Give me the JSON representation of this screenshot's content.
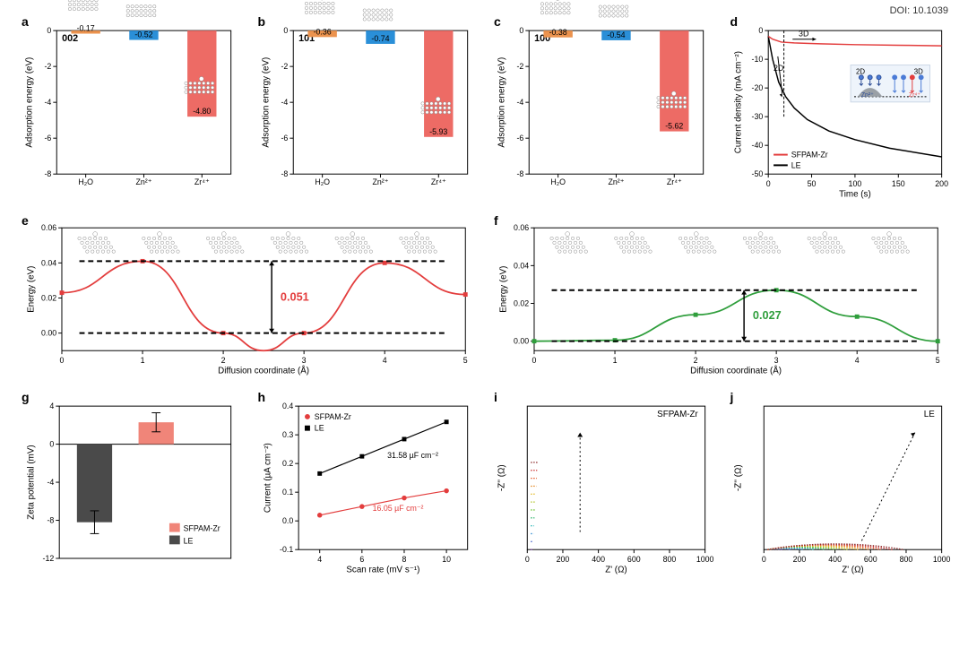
{
  "doi": "DOI: 10.1039",
  "colors": {
    "orange": "#ec934e",
    "blue": "#2a8fd8",
    "red": "#ed6b65",
    "line_red": "#e33d3d",
    "line_green": "#2f9e3c",
    "line_black": "#000000",
    "series_black": "#000000",
    "grid": "#d9d9d9",
    "gray_bar": "#4a4a4a",
    "salmon": "#f08579"
  },
  "panel_a": {
    "label": "a",
    "title": "002",
    "y_title": "Adsorption energy (eV)",
    "ylim": [
      0,
      -8
    ],
    "yticks": [
      0,
      -2,
      -4,
      -6,
      -8
    ],
    "categories": [
      "H₂O",
      "Zn²⁺",
      "Zr⁴⁺"
    ],
    "values": [
      -0.17,
      -0.52,
      -4.8
    ],
    "value_labels": [
      "-0.17",
      "-0.52",
      "-4.80"
    ],
    "bar_colors": [
      "orange",
      "blue",
      "red"
    ]
  },
  "panel_b": {
    "label": "b",
    "title": "101",
    "y_title": "Adsorption energy (eV)",
    "ylim": [
      0,
      -8
    ],
    "yticks": [
      0,
      -2,
      -4,
      -6,
      -8
    ],
    "categories": [
      "H₂O",
      "Zn²⁺",
      "Zr⁴⁺"
    ],
    "values": [
      -0.36,
      -0.74,
      -5.93
    ],
    "value_labels": [
      "-0.36",
      "-0.74",
      "-5.93"
    ],
    "bar_colors": [
      "orange",
      "blue",
      "red"
    ]
  },
  "panel_c": {
    "label": "c",
    "title": "100",
    "y_title": "Adsorption energy (eV)",
    "ylim": [
      0,
      -8
    ],
    "yticks": [
      0,
      -2,
      -4,
      -6,
      -8
    ],
    "categories": [
      "H₂O",
      "Zn²⁺",
      "Zr⁴⁺"
    ],
    "values": [
      -0.38,
      -0.54,
      -5.62
    ],
    "value_labels": [
      "-0.38",
      "-0.54",
      "-5.62"
    ],
    "bar_colors": [
      "orange",
      "blue",
      "red"
    ]
  },
  "panel_d": {
    "label": "d",
    "x_title": "Time (s)",
    "y_title": "Current density (mA cm⁻²)",
    "xlim": [
      0,
      200
    ],
    "xticks": [
      0,
      50,
      100,
      150,
      200
    ],
    "ylim": [
      -50,
      0
    ],
    "yticks": [
      -50,
      -40,
      -30,
      -20,
      -10,
      0
    ],
    "legend": [
      {
        "label": "SFPAM-Zr",
        "color": "line_red"
      },
      {
        "label": "LE",
        "color": "line_black"
      }
    ],
    "ann_3d": "3D",
    "ann_2d": "2D",
    "inset_labels": {
      "zn": "Zn²⁺",
      "zr": "Zr⁴⁺",
      "l2d": "2D",
      "l3d": "3D"
    },
    "series": {
      "sfpam": [
        [
          0,
          -2
        ],
        [
          5,
          -3
        ],
        [
          15,
          -4
        ],
        [
          30,
          -4.3
        ],
        [
          60,
          -4.6
        ],
        [
          100,
          -4.9
        ],
        [
          150,
          -5.1
        ],
        [
          200,
          -5.3
        ]
      ],
      "le": [
        [
          0,
          -2
        ],
        [
          5,
          -10
        ],
        [
          12,
          -18
        ],
        [
          20,
          -23
        ],
        [
          30,
          -27
        ],
        [
          45,
          -31
        ],
        [
          70,
          -35
        ],
        [
          100,
          -38
        ],
        [
          140,
          -41
        ],
        [
          200,
          -44
        ]
      ]
    }
  },
  "panel_e": {
    "label": "e",
    "x_title": "Diffusion coordinate (Å)",
    "y_title": "Energy (eV)",
    "xlim": [
      0,
      5
    ],
    "xticks": [
      0,
      1,
      2,
      3,
      4,
      5
    ],
    "ylim": [
      -0.01,
      0.06
    ],
    "yticks": [
      0.0,
      0.02,
      0.04,
      0.06
    ],
    "barrier_label": "0.051",
    "barrier_color": "line_red",
    "points": [
      [
        0,
        0.023
      ],
      [
        1,
        0.041
      ],
      [
        2,
        0.0
      ],
      [
        2.5,
        -0.01
      ],
      [
        3,
        0.0
      ],
      [
        4,
        0.04
      ],
      [
        5,
        0.022
      ]
    ],
    "markers": [
      [
        0,
        0.023
      ],
      [
        1,
        0.041
      ],
      [
        2,
        0.0
      ],
      [
        3,
        0.0
      ],
      [
        4,
        0.04
      ],
      [
        5,
        0.022
      ]
    ]
  },
  "panel_f": {
    "label": "f",
    "x_title": "Diffusion coordinate (Å)",
    "y_title": "Energy (eV)",
    "xlim": [
      0,
      5
    ],
    "xticks": [
      0,
      1,
      2,
      3,
      4,
      5
    ],
    "ylim": [
      -0.005,
      0.06
    ],
    "yticks": [
      0.0,
      0.02,
      0.04,
      0.06
    ],
    "barrier_label": "0.027",
    "barrier_color": "line_green",
    "points": [
      [
        0,
        0.0
      ],
      [
        1,
        0.0005
      ],
      [
        2,
        0.014
      ],
      [
        3,
        0.027
      ],
      [
        4,
        0.013
      ],
      [
        5,
        0.0
      ]
    ],
    "markers": [
      [
        0,
        0.0
      ],
      [
        1,
        0.0005
      ],
      [
        2,
        0.014
      ],
      [
        3,
        0.027
      ],
      [
        4,
        0.013
      ],
      [
        5,
        0.0
      ]
    ]
  },
  "panel_g": {
    "label": "g",
    "y_title": "Zeta potential (mV)",
    "ylim": [
      -12,
      4
    ],
    "yticks": [
      -12,
      -8,
      -4,
      0,
      4
    ],
    "bars": [
      {
        "x": 0,
        "val": -8.2,
        "err": 1.2,
        "color": "gray_bar",
        "legend": "LE"
      },
      {
        "x": 1,
        "val": 2.3,
        "err": 1.0,
        "color": "salmon",
        "legend": "SFPAM-Zr"
      }
    ],
    "legend": [
      {
        "label": "SFPAM-Zr",
        "color": "salmon"
      },
      {
        "label": "LE",
        "color": "gray_bar"
      }
    ]
  },
  "panel_h": {
    "label": "h",
    "x_title": "Scan rate (mV s⁻¹)",
    "y_title": "Current (µA cm⁻²)",
    "xlim": [
      3,
      11
    ],
    "xticks": [
      4,
      6,
      8,
      10
    ],
    "ylim": [
      -0.1,
      0.4
    ],
    "yticks": [
      -0.1,
      0.0,
      0.1,
      0.2,
      0.3,
      0.4
    ],
    "series": {
      "le": {
        "pts": [
          [
            4,
            0.165
          ],
          [
            6,
            0.225
          ],
          [
            8,
            0.285
          ],
          [
            10,
            0.345
          ]
        ],
        "label": "LE",
        "color": "series_black"
      },
      "sfpam": {
        "pts": [
          [
            4,
            0.02
          ],
          [
            6,
            0.05
          ],
          [
            8,
            0.08
          ],
          [
            10,
            0.105
          ]
        ],
        "label": "SFPAM-Zr",
        "color": "line_red"
      }
    },
    "ann_le": "31.58 µF cm⁻²",
    "ann_sf": "16.05 µF cm⁻²"
  },
  "panel_i": {
    "label": "i",
    "title": "SFPAM-Zr",
    "x_title": "Z' (Ω)",
    "y_title": "-Z'' (Ω)",
    "xlim": [
      0,
      1000
    ],
    "xticks": [
      0,
      200,
      400,
      600,
      800,
      1000
    ],
    "nyquist_colors": [
      "#7e3fa9",
      "#3b5bc7",
      "#2b8bd1",
      "#22b3b3",
      "#1fae5e",
      "#67c22c",
      "#b0c423",
      "#e3b923",
      "#e38823",
      "#e35523",
      "#c92f2f",
      "#8e2f2f"
    ],
    "radii": [
      40,
      55,
      70,
      82,
      95,
      108,
      120,
      132,
      143,
      153,
      162,
      170
    ]
  },
  "panel_j": {
    "label": "j",
    "title": "LE",
    "x_title": "Z' (Ω)",
    "y_title": "-Z'' (Ω)",
    "xlim": [
      0,
      1000
    ],
    "xticks": [
      0,
      200,
      400,
      600,
      800,
      1000
    ],
    "nyquist_colors": [
      "#7e3fa9",
      "#3b5bc7",
      "#2b8bd1",
      "#22b3b3",
      "#1fae5e",
      "#67c22c",
      "#b0c423",
      "#e3b923",
      "#e38823",
      "#e35523",
      "#c92f2f",
      "#8e2f2f"
    ],
    "radii": [
      90,
      150,
      220,
      290,
      360,
      430,
      500,
      570,
      640,
      710,
      780,
      850
    ]
  }
}
